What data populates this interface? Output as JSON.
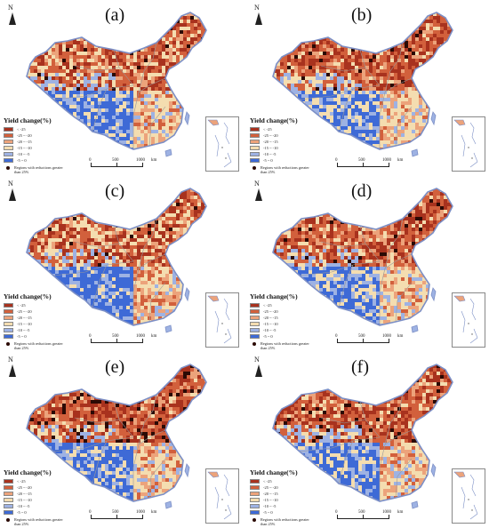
{
  "panels": [
    {
      "label": "(a)"
    },
    {
      "label": "(b)"
    },
    {
      "label": "(c)"
    },
    {
      "label": "(d)"
    },
    {
      "label": "(e)"
    },
    {
      "label": "(f)"
    }
  ],
  "north_label": "N",
  "legend": {
    "title": "Yield change(%)",
    "classes": [
      {
        "label": "< -25",
        "color": "#a8321e"
      },
      {
        "label": "-25 ~ -20",
        "color": "#d2603c"
      },
      {
        "label": "-20 ~ -15",
        "color": "#eca37b"
      },
      {
        "label": "-15 ~ -10",
        "color": "#f4ddb0"
      },
      {
        "label": "-10 ~ -5",
        "color": "#9eb2e3"
      },
      {
        "label": "-5 ~ 0",
        "color": "#3e6ad6"
      }
    ],
    "note": "Regions with reductions greater than 25%"
  },
  "scalebar": {
    "ticks": [
      "0",
      "500",
      "1000"
    ],
    "unit": "km"
  },
  "colors": {
    "severe_dot": "#2b0a05",
    "border": "#7c8fc6",
    "province_lines": "#9a9a9a"
  }
}
